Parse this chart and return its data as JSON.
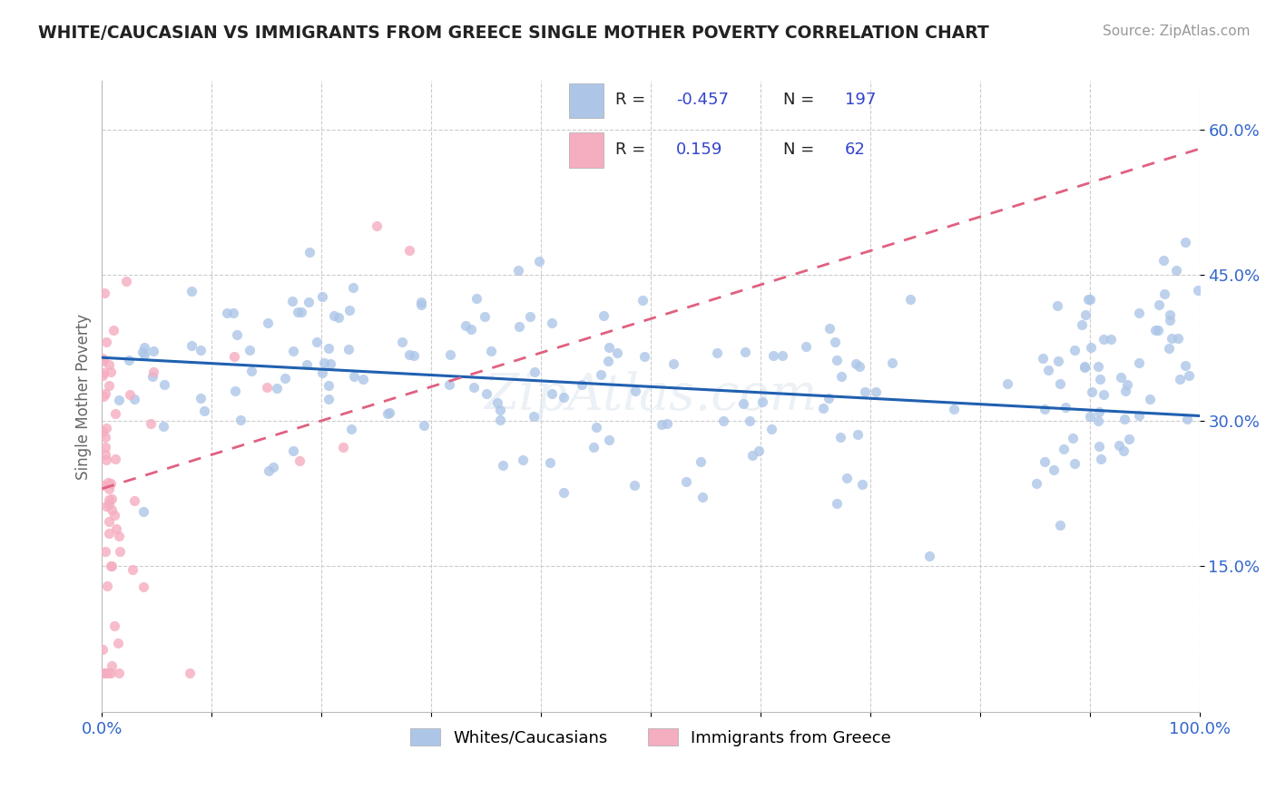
{
  "title": "WHITE/CAUCASIAN VS IMMIGRANTS FROM GREECE SINGLE MOTHER POVERTY CORRELATION CHART",
  "source": "Source: ZipAtlas.com",
  "ylabel": "Single Mother Poverty",
  "yticks_labels": [
    "15.0%",
    "30.0%",
    "45.0%",
    "60.0%"
  ],
  "ytick_values": [
    0.15,
    0.3,
    0.45,
    0.6
  ],
  "legend_label1": "Whites/Caucasians",
  "legend_label2": "Immigrants from Greece",
  "R1": "-0.457",
  "N1": "197",
  "R2": "0.159",
  "N2": "62",
  "color_blue": "#adc6e8",
  "color_pink": "#f5adc0",
  "trendline_blue": "#2060b0",
  "trendline_pink": "#e06080",
  "background_color": "#ffffff",
  "grid_color": "#cccccc",
  "title_color": "#222222",
  "tick_color": "#3366cc",
  "source_color": "#999999",
  "ylabel_color": "#666666",
  "legend_text_color": "#222222",
  "legend_value_color": "#3344cc",
  "xlim": [
    0.0,
    1.0
  ],
  "ylim": [
    0.0,
    0.65
  ]
}
